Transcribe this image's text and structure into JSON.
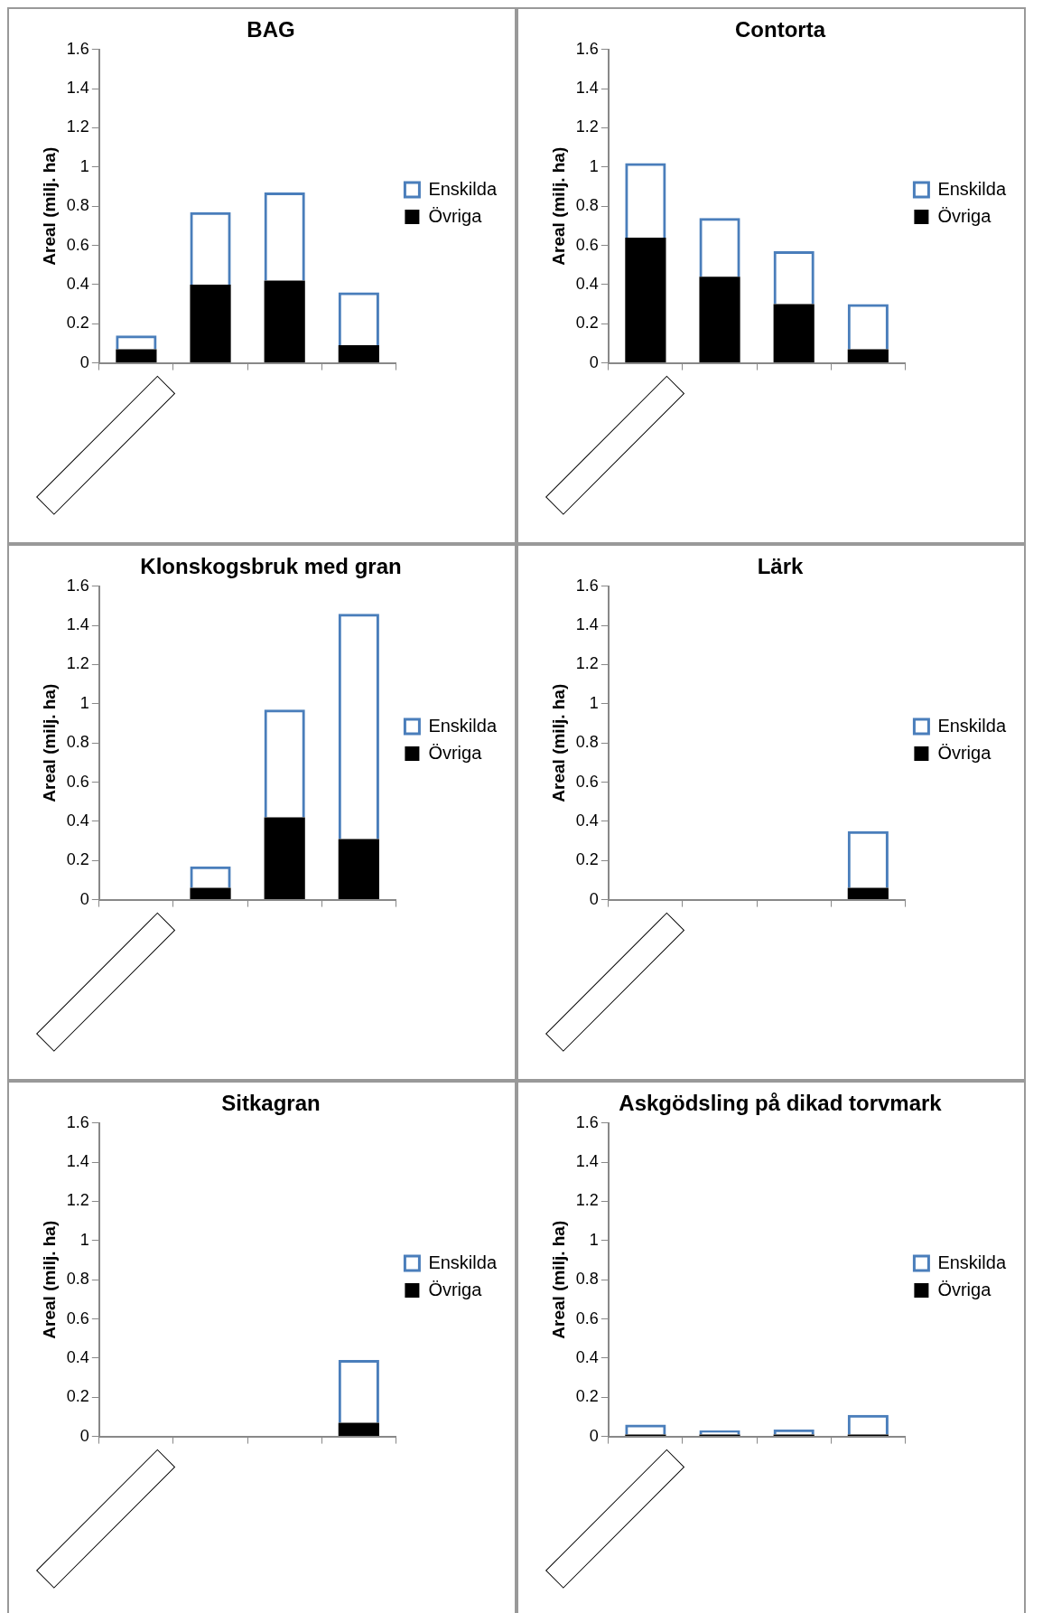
{
  "chart_data": [
    {
      "type": "bar",
      "title": "BAG",
      "ylabel": "Areal (milj. ha)",
      "categories": [
        null,
        null,
        null,
        null
      ],
      "stacked": true,
      "ylim": [
        0,
        1.6
      ],
      "yticks": [
        0,
        0.2,
        0.4,
        0.6,
        0.8,
        1,
        1.2,
        1.4,
        1.6
      ],
      "grid": false,
      "legend": "right",
      "series": [
        {
          "name": "Övriga",
          "color": "#000000",
          "values": [
            0.07,
            0.4,
            0.42,
            0.09
          ]
        },
        {
          "name": "Enskilda",
          "color": "#4a7ebb",
          "values": [
            0.07,
            0.37,
            0.45,
            0.27
          ]
        }
      ]
    },
    {
      "type": "bar",
      "title": "Contorta",
      "ylabel": "Areal (milj. ha)",
      "categories": [
        null,
        null,
        null,
        null
      ],
      "stacked": true,
      "ylim": [
        0,
        1.6
      ],
      "yticks": [
        0,
        0.2,
        0.4,
        0.6,
        0.8,
        1,
        1.2,
        1.4,
        1.6
      ],
      "grid": false,
      "legend": "right",
      "series": [
        {
          "name": "Övriga",
          "color": "#000000",
          "values": [
            0.64,
            0.44,
            0.3,
            0.07
          ]
        },
        {
          "name": "Enskilda",
          "color": "#4a7ebb",
          "values": [
            0.38,
            0.3,
            0.27,
            0.23
          ]
        }
      ]
    },
    {
      "type": "bar",
      "title": "Klonskogsbruk med gran",
      "ylabel": "Areal (milj. ha)",
      "categories": [
        null,
        null,
        null,
        null
      ],
      "stacked": true,
      "ylim": [
        0,
        1.6
      ],
      "yticks": [
        0,
        0.2,
        0.4,
        0.6,
        0.8,
        1,
        1.2,
        1.4,
        1.6
      ],
      "grid": false,
      "legend": "right",
      "series": [
        {
          "name": "Övriga",
          "color": "#000000",
          "values": [
            0,
            0.06,
            0.42,
            0.31
          ]
        },
        {
          "name": "Enskilda",
          "color": "#4a7ebb",
          "values": [
            0,
            0.11,
            0.55,
            1.15
          ]
        }
      ]
    },
    {
      "type": "bar",
      "title": "Lärk",
      "ylabel": "Areal (milj. ha)",
      "categories": [
        null,
        null,
        null,
        null
      ],
      "stacked": true,
      "ylim": [
        0,
        1.6
      ],
      "yticks": [
        0,
        0.2,
        0.4,
        0.6,
        0.8,
        1,
        1.2,
        1.4,
        1.6
      ],
      "grid": false,
      "legend": "right",
      "series": [
        {
          "name": "Övriga",
          "color": "#000000",
          "values": [
            0,
            0,
            0,
            0.06
          ]
        },
        {
          "name": "Enskilda",
          "color": "#4a7ebb",
          "values": [
            0,
            0,
            0,
            0.29
          ]
        }
      ]
    },
    {
      "type": "bar",
      "title": "Sitkagran",
      "ylabel": "Areal (milj. ha)",
      "categories": [
        null,
        null,
        null,
        null
      ],
      "stacked": true,
      "ylim": [
        0,
        1.6
      ],
      "yticks": [
        0,
        0.2,
        0.4,
        0.6,
        0.8,
        1,
        1.2,
        1.4,
        1.6
      ],
      "grid": false,
      "legend": "right",
      "series": [
        {
          "name": "Övriga",
          "color": "#000000",
          "values": [
            0,
            0,
            0,
            0.07
          ]
        },
        {
          "name": "Enskilda",
          "color": "#4a7ebb",
          "values": [
            0,
            0,
            0,
            0.32
          ]
        }
      ]
    },
    {
      "type": "bar",
      "title": "Askgödsling på dikad torvmark",
      "ylabel": "Areal (milj. ha)",
      "categories": [
        null,
        null,
        null,
        null
      ],
      "stacked": true,
      "ylim": [
        0,
        1.6
      ],
      "yticks": [
        0,
        0.2,
        0.4,
        0.6,
        0.8,
        1,
        1.2,
        1.4,
        1.6
      ],
      "grid": false,
      "legend": "right",
      "series": [
        {
          "name": "Övriga",
          "color": "#000000",
          "values": [
            0.01,
            0.01,
            0.01,
            0.01
          ]
        },
        {
          "name": "Enskilda",
          "color": "#4a7ebb",
          "values": [
            0.05,
            0.02,
            0.025,
            0.1
          ]
        }
      ]
    }
  ]
}
